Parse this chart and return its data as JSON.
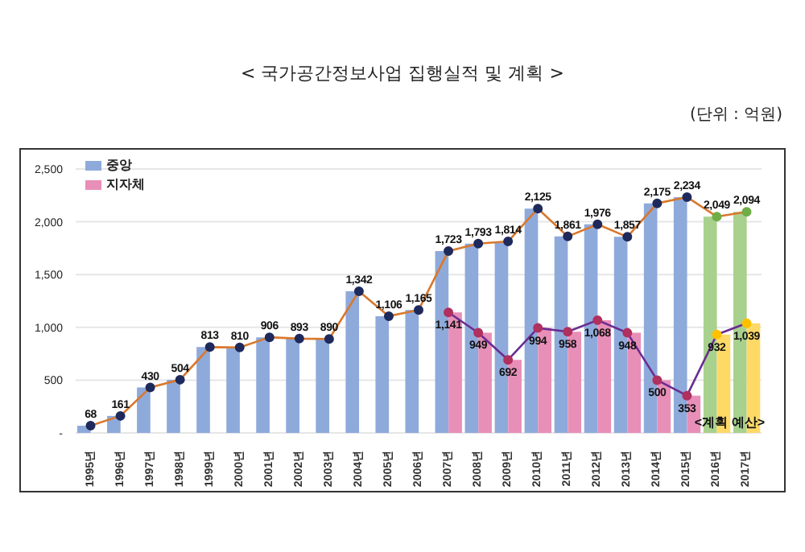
{
  "chart_data": {
    "type": "bar",
    "title": "< 국가공간정보사업 집행실적 및 계획 >",
    "subtitle": "(단위 : 억원)",
    "categories": [
      "1995년",
      "1996년",
      "1997년",
      "1998년",
      "1999년",
      "2000년",
      "2001년",
      "2002년",
      "2003년",
      "2004년",
      "2005년",
      "2006년",
      "2007년",
      "2008년",
      "2009년",
      "2010년",
      "2011년",
      "2012년",
      "2013년",
      "2014년",
      "2015년",
      "2016년",
      "2017년"
    ],
    "series": [
      {
        "name": "중앙",
        "color": "#8eaadb",
        "colors": [
          "#8eaadb",
          "#8eaadb",
          "#8eaadb",
          "#8eaadb",
          "#8eaadb",
          "#8eaadb",
          "#8eaadb",
          "#8eaadb",
          "#8eaadb",
          "#8eaadb",
          "#8eaadb",
          "#8eaadb",
          "#8eaadb",
          "#8eaadb",
          "#8eaadb",
          "#8eaadb",
          "#8eaadb",
          "#8eaadb",
          "#8eaadb",
          "#8eaadb",
          "#8eaadb",
          "#a9d18e",
          "#a9d18e"
        ],
        "values": [
          68,
          161,
          430,
          504,
          813,
          810,
          906,
          893,
          890,
          1342,
          1106,
          1165,
          1723,
          1793,
          1814,
          2125,
          1861,
          1976,
          1857,
          2175,
          2234,
          2049,
          2094
        ]
      },
      {
        "name": "지자체",
        "color": "#e88fb8",
        "colors": [
          null,
          null,
          null,
          null,
          null,
          null,
          null,
          null,
          null,
          null,
          null,
          null,
          "#e88fb8",
          "#e88fb8",
          "#e88fb8",
          "#e88fb8",
          "#e88fb8",
          "#e88fb8",
          "#e88fb8",
          "#e88fb8",
          "#e88fb8",
          "#ffd966",
          "#ffd966"
        ],
        "values": [
          null,
          null,
          null,
          null,
          null,
          null,
          null,
          null,
          null,
          null,
          null,
          null,
          1141,
          949,
          692,
          994,
          958,
          1068,
          948,
          500,
          353,
          932,
          1039
        ]
      },
      {
        "type": "line",
        "color": "#d9782d",
        "colors": [
          "#1f2a5c",
          "#1f2a5c",
          "#1f2a5c",
          "#1f2a5c",
          "#1f2a5c",
          "#1f2a5c",
          "#1f2a5c",
          "#1f2a5c",
          "#1f2a5c",
          "#1f2a5c",
          "#1f2a5c",
          "#1f2a5c",
          "#1f2a5c",
          "#1f2a5c",
          "#1f2a5c",
          "#1f2a5c",
          "#1f2a5c",
          "#1f2a5c",
          "#1f2a5c",
          "#1f2a5c",
          "#1f2a5c",
          "#70ad47",
          "#70ad47"
        ],
        "values": [
          68,
          161,
          430,
          504,
          813,
          810,
          906,
          893,
          890,
          1342,
          1106,
          1165,
          1723,
          1793,
          1814,
          2125,
          1861,
          1976,
          1857,
          2175,
          2234,
          2049,
          2094
        ],
        "value_labels": [
          "68",
          "161",
          "430",
          "504",
          "813",
          "810",
          "906",
          "893",
          "890",
          "1,342",
          "1,106",
          "1,165",
          "1,723",
          "1,793",
          "1,814",
          "2,125",
          "1,861",
          "1,976",
          "1,857",
          "2,175",
          "2,234",
          "2,049",
          "2,094"
        ]
      },
      {
        "type": "line",
        "color": "#6a2c91",
        "colors": [
          null,
          null,
          null,
          null,
          null,
          null,
          null,
          null,
          null,
          null,
          null,
          null,
          "#b0305f",
          "#b0305f",
          "#b0305f",
          "#b0305f",
          "#b0305f",
          "#b0305f",
          "#b0305f",
          "#b0305f",
          "#b0305f",
          "#ffc000",
          "#ffc000"
        ],
        "values": [
          null,
          null,
          null,
          null,
          null,
          null,
          null,
          null,
          null,
          null,
          null,
          null,
          1141,
          949,
          692,
          994,
          958,
          1068,
          948,
          500,
          353,
          932,
          1039
        ],
        "value_labels": [
          null,
          null,
          null,
          null,
          null,
          null,
          null,
          null,
          null,
          null,
          null,
          null,
          "1,141",
          "949",
          "692",
          "994",
          "958",
          "1,068",
          "948",
          "500",
          "353",
          "932",
          "1,039"
        ]
      }
    ],
    "ylim": [
      0,
      2500
    ],
    "yticks": [
      {
        "value": 0,
        "label": "-"
      },
      500,
      {
        "value": 1000,
        "label": "1,000"
      },
      {
        "value": 1500,
        "label": "1,500"
      },
      {
        "value": 2000,
        "label": "2,000"
      },
      {
        "value": 2500,
        "label": "2,500"
      }
    ],
    "grid": "y",
    "legend": "top left",
    "marker": "circle",
    "annotations": [
      "<계획 예산>"
    ]
  }
}
